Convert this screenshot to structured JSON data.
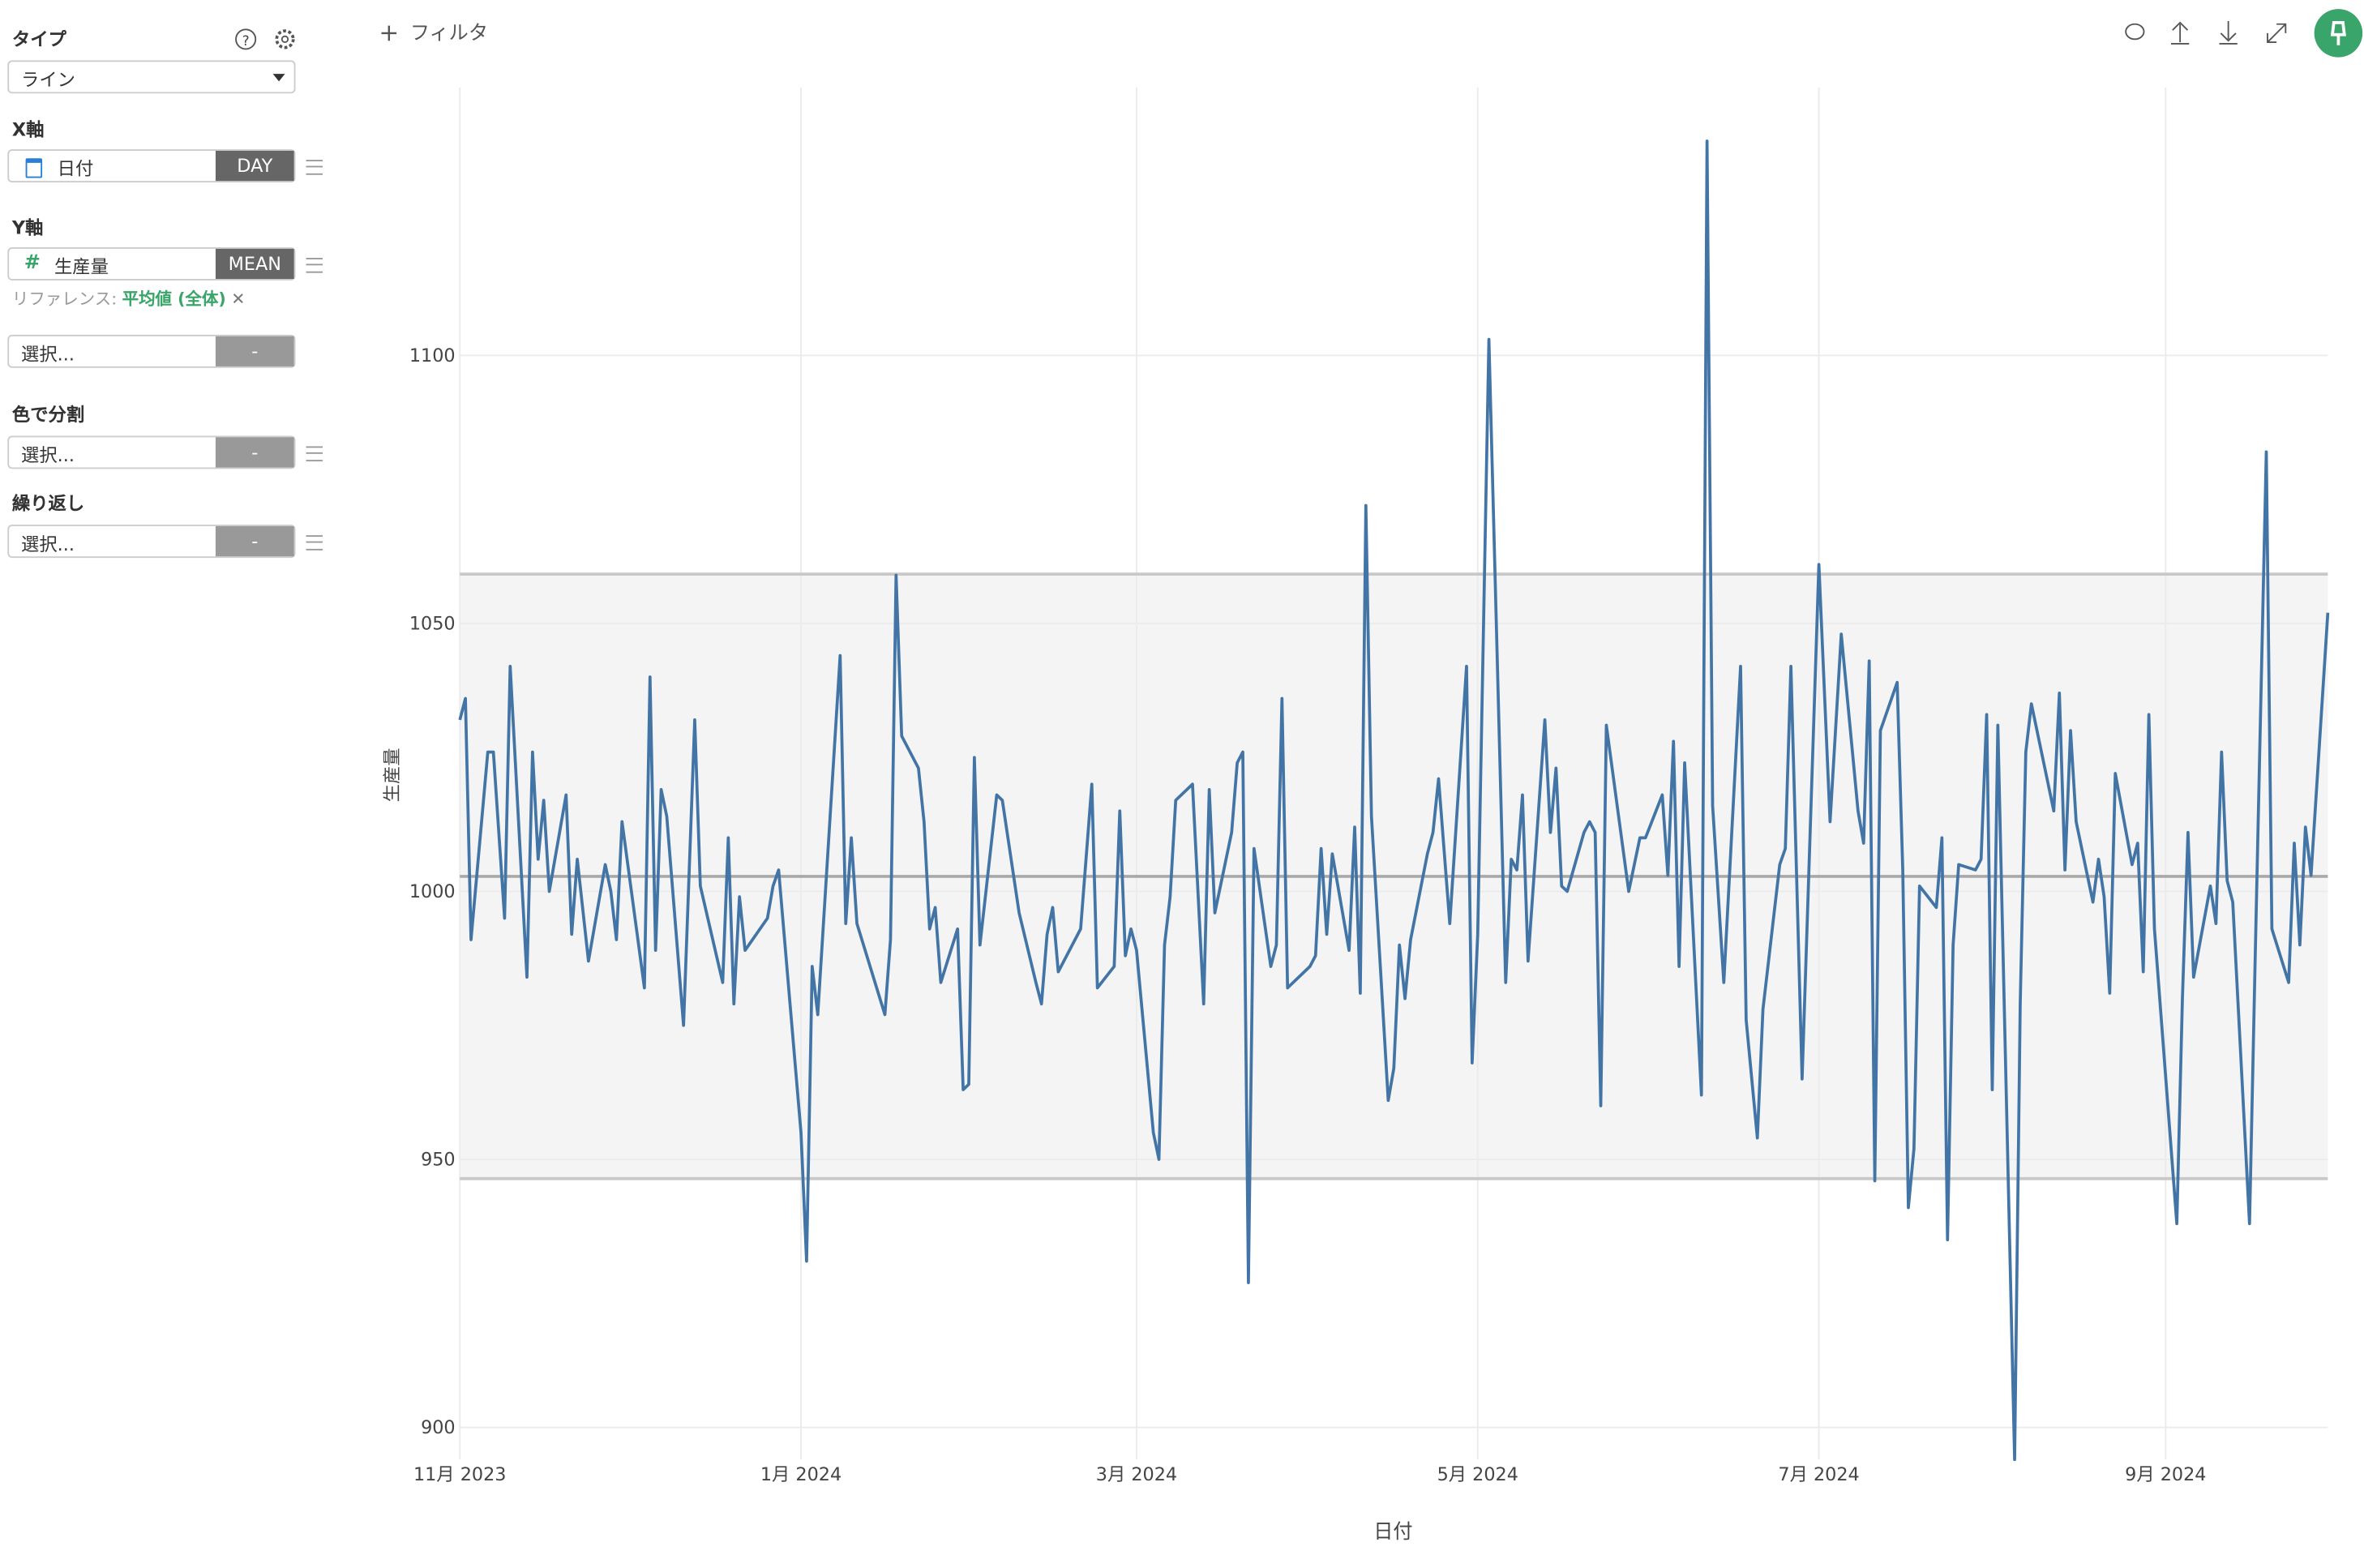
{
  "sidebar": {
    "type_label": "タイプ",
    "type_value": "ライン",
    "x_label": "X軸",
    "x_field": "日付",
    "x_agg": "DAY",
    "y_label": "Y軸",
    "y_field": "生産量",
    "y_agg": "MEAN",
    "reference_prefix": "リファレンス:",
    "reference_value": "平均値 (全体)",
    "extra_select": "選択...",
    "extra_agg": "-",
    "color_label": "色で分割",
    "color_select": "選択...",
    "color_agg": "-",
    "repeat_label": "繰り返し",
    "repeat_select": "選択...",
    "repeat_agg": "-"
  },
  "toolbar": {
    "filter": "フィルタ"
  },
  "chart_data": {
    "type": "line",
    "xlabel": "日付",
    "ylabel": "生産量",
    "color": "#4274a5",
    "grid": true,
    "xlim": [
      "2023-11-01",
      "2024-09-30"
    ],
    "xticks": [
      {
        "value": "2023-11-01",
        "label": "11月 2023"
      },
      {
        "value": "2024-01-01",
        "label": "1月 2024"
      },
      {
        "value": "2024-03-01",
        "label": "3月 2024"
      },
      {
        "value": "2024-05-01",
        "label": "5月 2024"
      },
      {
        "value": "2024-07-01",
        "label": "7月 2024"
      },
      {
        "value": "2024-09-01",
        "label": "9月 2024"
      }
    ],
    "ylim": [
      894,
      1150
    ],
    "yticks": [
      900,
      950,
      1000,
      1050,
      1100
    ],
    "reference": {
      "mean": 1002.8,
      "upper": 1059.2,
      "lower": 946.4
    },
    "x": [
      "2023-11-01",
      "2023-11-02",
      "2023-11-03",
      "2023-11-06",
      "2023-11-07",
      "2023-11-09",
      "2023-11-10",
      "2023-11-13",
      "2023-11-14",
      "2023-11-15",
      "2023-11-16",
      "2023-11-17",
      "2023-11-20",
      "2023-11-21",
      "2023-11-22",
      "2023-11-24",
      "2023-11-27",
      "2023-11-28",
      "2023-11-29",
      "2023-11-30",
      "2023-12-04",
      "2023-12-05",
      "2023-12-06",
      "2023-12-07",
      "2023-12-08",
      "2023-12-11",
      "2023-12-13",
      "2023-12-14",
      "2023-12-18",
      "2023-12-19",
      "2023-12-20",
      "2023-12-21",
      "2023-12-22",
      "2023-12-26",
      "2023-12-27",
      "2023-12-28",
      "2024-01-01",
      "2024-01-02",
      "2024-01-03",
      "2024-01-04",
      "2024-01-08",
      "2024-01-09",
      "2024-01-10",
      "2024-01-11",
      "2024-01-16",
      "2024-01-17",
      "2024-01-18",
      "2024-01-19",
      "2024-01-22",
      "2024-01-23",
      "2024-01-24",
      "2024-01-25",
      "2024-01-26",
      "2024-01-29",
      "2024-01-30",
      "2024-01-31",
      "2024-02-01",
      "2024-02-02",
      "2024-02-05",
      "2024-02-06",
      "2024-02-09",
      "2024-02-12",
      "2024-02-13",
      "2024-02-14",
      "2024-02-15",
      "2024-02-16",
      "2024-02-20",
      "2024-02-22",
      "2024-02-23",
      "2024-02-26",
      "2024-02-27",
      "2024-02-28",
      "2024-02-29",
      "2024-03-01",
      "2024-03-04",
      "2024-03-05",
      "2024-03-06",
      "2024-03-07",
      "2024-03-08",
      "2024-03-11",
      "2024-03-13",
      "2024-03-14",
      "2024-03-15",
      "2024-03-18",
      "2024-03-19",
      "2024-03-20",
      "2024-03-21",
      "2024-03-22",
      "2024-03-25",
      "2024-03-26",
      "2024-03-27",
      "2024-03-28",
      "2024-04-01",
      "2024-04-02",
      "2024-04-03",
      "2024-04-04",
      "2024-04-05",
      "2024-04-08",
      "2024-04-09",
      "2024-04-10",
      "2024-04-11",
      "2024-04-12",
      "2024-04-15",
      "2024-04-16",
      "2024-04-17",
      "2024-04-18",
      "2024-04-19",
      "2024-04-22",
      "2024-04-23",
      "2024-04-24",
      "2024-04-26",
      "2024-04-29",
      "2024-04-30",
      "2024-05-01",
      "2024-05-03",
      "2024-05-06",
      "2024-05-07",
      "2024-05-08",
      "2024-05-09",
      "2024-05-10",
      "2024-05-13",
      "2024-05-14",
      "2024-05-15",
      "2024-05-16",
      "2024-05-17",
      "2024-05-20",
      "2024-05-21",
      "2024-05-22",
      "2024-05-23",
      "2024-05-24",
      "2024-05-28",
      "2024-05-29",
      "2024-05-30",
      "2024-05-31",
      "2024-06-03",
      "2024-06-04",
      "2024-06-05",
      "2024-06-06",
      "2024-06-07",
      "2024-06-10",
      "2024-06-11",
      "2024-06-12",
      "2024-06-14",
      "2024-06-17",
      "2024-06-18",
      "2024-06-20",
      "2024-06-21",
      "2024-06-24",
      "2024-06-25",
      "2024-06-26",
      "2024-06-28",
      "2024-07-01",
      "2024-07-03",
      "2024-07-05",
      "2024-07-08",
      "2024-07-09",
      "2024-07-10",
      "2024-07-11",
      "2024-07-12",
      "2024-07-15",
      "2024-07-16",
      "2024-07-17",
      "2024-07-18",
      "2024-07-19",
      "2024-07-22",
      "2024-07-23",
      "2024-07-24",
      "2024-07-25",
      "2024-07-26",
      "2024-07-29",
      "2024-07-30",
      "2024-07-31",
      "2024-08-01",
      "2024-08-02",
      "2024-08-05",
      "2024-08-06",
      "2024-08-07",
      "2024-08-08",
      "2024-08-12",
      "2024-08-13",
      "2024-08-14",
      "2024-08-15",
      "2024-08-16",
      "2024-08-19",
      "2024-08-20",
      "2024-08-21",
      "2024-08-22",
      "2024-08-23",
      "2024-08-26",
      "2024-08-27",
      "2024-08-28",
      "2024-08-29",
      "2024-08-30",
      "2024-09-03",
      "2024-09-04",
      "2024-09-05",
      "2024-09-06",
      "2024-09-09",
      "2024-09-10",
      "2024-09-11",
      "2024-09-12",
      "2024-09-13",
      "2024-09-16",
      "2024-09-17",
      "2024-09-19",
      "2024-09-20",
      "2024-09-23",
      "2024-09-24",
      "2024-09-25",
      "2024-09-26",
      "2024-09-27",
      "2024-09-30"
    ],
    "values": [
      1032,
      1036,
      991,
      1026,
      1026,
      995,
      1042,
      984,
      1026,
      1006,
      1017,
      1000,
      1018,
      992,
      1006,
      987,
      1005,
      1000,
      991,
      1013,
      982,
      1040,
      989,
      1019,
      1014,
      975,
      1032,
      1001,
      983,
      1010,
      979,
      999,
      989,
      995,
      1001,
      1004,
      955,
      931,
      986,
      977,
      1044,
      994,
      1010,
      994,
      977,
      991,
      1059,
      1029,
      1023,
      1013,
      993,
      997,
      983,
      993,
      963,
      964,
      1025,
      990,
      1018,
      1017,
      996,
      983,
      979,
      992,
      997,
      985,
      993,
      1020,
      982,
      986,
      1015,
      988,
      993,
      989,
      955,
      950,
      990,
      999,
      1017,
      1020,
      979,
      1019,
      996,
      1011,
      1024,
      1026,
      927,
      1008,
      986,
      990,
      1036,
      982,
      986,
      988,
      1008,
      992,
      1007,
      989,
      1012,
      981,
      1072,
      1014,
      961,
      967,
      990,
      980,
      991,
      1007,
      1011,
      1021,
      994,
      1042,
      968,
      992,
      1103,
      983,
      1006,
      1004,
      1018,
      987,
      1032,
      1011,
      1023,
      1001,
      1000,
      1011,
      1013,
      1011,
      960,
      1031,
      1000,
      1005,
      1010,
      1010,
      1018,
      1003,
      1028,
      986,
      1024,
      962,
      1140,
      1016,
      983,
      1042,
      976,
      954,
      978,
      1005,
      1008,
      1042,
      965,
      1061,
      1013,
      1048,
      1015,
      1009,
      1043,
      946,
      1030,
      1039,
      1004,
      941,
      952,
      1001,
      997,
      1010,
      935,
      990,
      1005,
      1004,
      1006,
      1033,
      963,
      1031,
      894,
      979,
      1026,
      1035,
      1015,
      1037,
      1004,
      1030,
      1013,
      998,
      1006,
      999,
      981,
      1022,
      1005,
      1009,
      985,
      1033,
      993,
      938,
      980,
      1011,
      984,
      1001,
      994,
      1026,
      1002,
      998,
      938,
      987,
      1082,
      993,
      983,
      1009,
      990,
      1012,
      1003,
      1052
    ]
  }
}
